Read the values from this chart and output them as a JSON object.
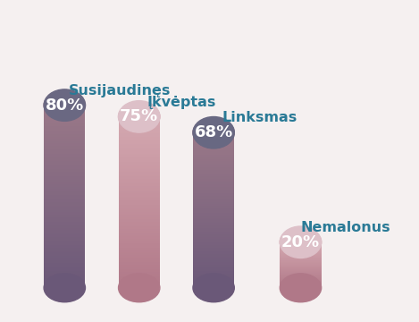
{
  "categories": [
    "Susijaudinęs",
    "Įkvėptas",
    "Linksmas",
    "Nemalonus"
  ],
  "values": [
    80,
    75,
    68,
    20
  ],
  "bar_gradient_top": [
    "#9a7a90",
    "#d4a0b0",
    "#8a7890",
    "#d4a8b8"
  ],
  "bar_gradient_bottom": [
    "#6a5878",
    "#b07888",
    "#6a5878",
    "#b07888"
  ],
  "cap_colors": [
    "#6a6882",
    "#e0bcc4",
    "#686880",
    "#e0bcc4"
  ],
  "label_color": "#2a7a96",
  "text_color": "#ffffff",
  "background_color": "#f5f0f0",
  "label_fontsize": 11.5,
  "value_fontsize": 13,
  "fig_width": 4.69,
  "fig_height": 3.6,
  "dpi": 100
}
